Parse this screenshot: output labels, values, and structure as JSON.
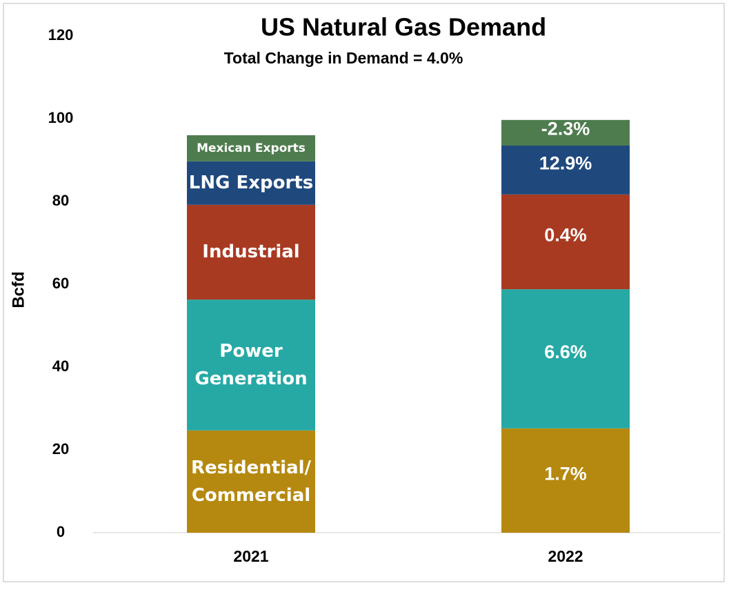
{
  "chart_data": {
    "type": "stacked_bar",
    "title": "US Natural Gas Demand",
    "subtitle": "Total Change in Demand = 4.0%",
    "y_label": "Bcfd",
    "categories": [
      "2021",
      "2022"
    ],
    "series": [
      {
        "name": "Residential/ Commercial",
        "color": "#b5890f",
        "values": [
          24.7,
          25.2
        ]
      },
      {
        "name": "Power Generation",
        "color": "#26a9a5",
        "values": [
          31.6,
          33.6
        ]
      },
      {
        "name": "Industrial",
        "color": "#a93a22",
        "values": [
          22.9,
          22.9
        ]
      },
      {
        "name": "LNG Exports",
        "color": "#1f497d",
        "values": [
          10.5,
          11.8
        ]
      },
      {
        "name": "Mexican Exports",
        "color": "#4e7c4e",
        "values": [
          6.3,
          6.2
        ]
      }
    ],
    "annotations": [
      "1.7%",
      "6.6%",
      "0.4%",
      "12.9%",
      "-2.3%"
    ],
    "ylim": [
      0,
      120
    ],
    "yticks": [
      0,
      20,
      40,
      60,
      80,
      100,
      120
    ]
  }
}
